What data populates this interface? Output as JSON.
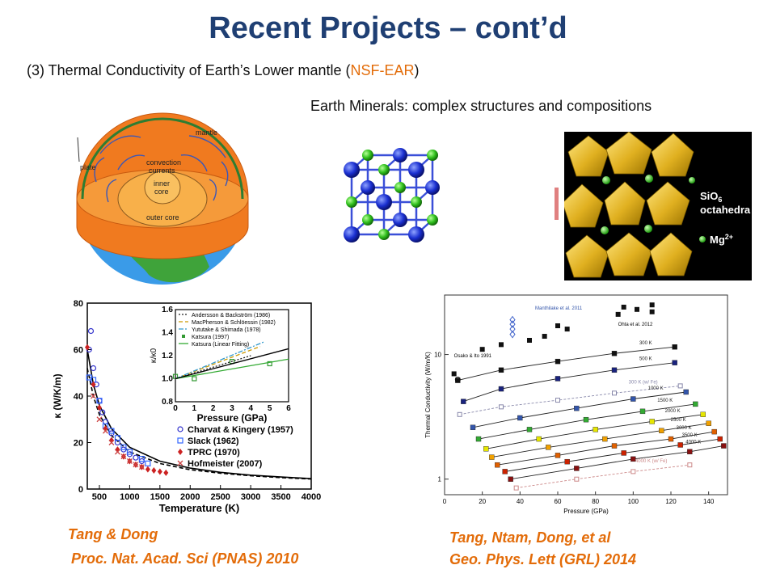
{
  "slide": {
    "title": "Recent Projects – cont’d",
    "subtitle_prefix": "(3) Thermal Conductivity of Earth’s Lower mantle (",
    "subtitle_funding": "NSF-EAR",
    "subtitle_suffix": ")",
    "minerals_caption": "Earth Minerals: complex structures and compositions"
  },
  "earth_diagram": {
    "labels": {
      "mantle": "mantle",
      "convection": "convection",
      "currents": "currents",
      "plate": "plate",
      "inner": "inner",
      "core": "core",
      "outer_core": "outer core"
    }
  },
  "perovskite": {
    "labels": {
      "sio6": "SiO",
      "sio6_sub": "6",
      "octahedra": "octahedra",
      "mg": "Mg",
      "mg_sup": "2+"
    }
  },
  "citations": {
    "left_line1": "Tang & Dong",
    "left_line2": "Proc. Nat. Acad. Sci (PNAS) 2010",
    "right_line1": "Tang, Ntam, Dong, et al",
    "right_line2": "Geo. Phys. Lett (GRL) 2014"
  },
  "chart_data": [
    {
      "type": "scatter",
      "xlabel": "Temperature (K)",
      "ylabel": "κ (W/K/m)",
      "xlim": [
        300,
        4000
      ],
      "ylim": [
        0,
        80
      ],
      "xticks": [
        "500",
        "1000",
        "1500",
        "2000",
        "2500",
        "3000",
        "3500",
        "4000"
      ],
      "yticks": [
        "0",
        "20",
        "40",
        "60",
        "80"
      ],
      "series": [
        {
          "name": "Charvat & Kingery (1957)",
          "color": "#3333cc",
          "marker": "circle",
          "x": [
            330,
            360,
            400,
            450,
            500,
            550,
            600,
            700,
            800,
            900,
            1000,
            1100,
            1200
          ],
          "y": [
            60,
            68,
            52,
            45,
            38,
            33,
            29,
            24,
            20,
            17,
            15,
            13.5,
            12
          ]
        },
        {
          "name": "Slack (1962)",
          "color": "#3366ff",
          "marker": "square",
          "x": [
            330,
            400,
            500,
            600,
            700,
            800,
            900,
            1000,
            1200,
            1300
          ],
          "y": [
            48,
            47,
            38,
            27,
            25,
            22,
            18,
            16,
            13,
            11
          ]
        },
        {
          "name": "TPRC (1970)",
          "color": "#cc2222",
          "marker": "diamond",
          "x": [
            300,
            400,
            500,
            600,
            700,
            800,
            900,
            1000,
            1100,
            1200,
            1300,
            1400,
            1500,
            1600
          ],
          "y": [
            61,
            45,
            35,
            26,
            21,
            17,
            14,
            12,
            10.5,
            9.5,
            8.5,
            8,
            7.5,
            7
          ]
        },
        {
          "name": "Hofmeister (2007)",
          "color": "#cc4444",
          "marker": "x",
          "x": [
            400,
            500,
            600,
            700,
            800,
            900,
            1000,
            1100,
            1200
          ],
          "y": [
            40,
            30,
            25,
            20,
            16,
            14,
            12,
            10.5,
            9.5
          ]
        }
      ],
      "curves": [
        {
          "style": "solid",
          "x": [
            300,
            400,
            500,
            700,
            1000,
            1500,
            2000,
            2500,
            3000,
            3500,
            4000
          ],
          "y": [
            60,
            45,
            36,
            26,
            18,
            12,
            9,
            7.2,
            6,
            5.2,
            4.5
          ]
        },
        {
          "style": "dashed",
          "x": [
            300,
            400,
            500,
            700,
            1000,
            1500,
            2000,
            2500,
            3000,
            3500,
            4000
          ],
          "y": [
            52,
            40,
            32,
            23,
            16,
            11,
            8.3,
            6.8,
            5.7,
            4.9,
            4.3
          ]
        }
      ],
      "inset": {
        "type": "line",
        "xlabel": "Pressure (GPa)",
        "ylabel": "κ/κ0",
        "xlim": [
          0,
          6
        ],
        "ylim": [
          0.8,
          1.6
        ],
        "xticks": [
          "0",
          "1",
          "2",
          "3",
          "4",
          "5",
          "6"
        ],
        "yticks": [
          "0.8",
          "1.0",
          "1.2",
          "1.4",
          "1.6"
        ],
        "series": [
          {
            "name": "Andersson & Backström (1986)",
            "color": "#222222",
            "style": "dotted",
            "x": [
              0,
              4
            ],
            "y": [
              1.0,
              1.2
            ]
          },
          {
            "name": "MacPherson & Schlöessin (1982)",
            "color": "#cc9900",
            "style": "dashed",
            "x": [
              0,
              4.5
            ],
            "y": [
              1.0,
              1.28
            ]
          },
          {
            "name": "Yututake & Shimada (1978)",
            "color": "#3399cc",
            "style": "dashdot",
            "x": [
              0,
              4.7
            ],
            "y": [
              1.0,
              1.32
            ]
          },
          {
            "name": "Katsura (1997)",
            "color": "#339933",
            "style": "points",
            "x": [
              0,
              1,
              3,
              5
            ],
            "y": [
              1.02,
              1.0,
              1.15,
              1.13
            ]
          },
          {
            "name": "Katsura (Linear Fitting)",
            "color": "#33aa33",
            "style": "solid",
            "x": [
              0,
              6
            ],
            "y": [
              1.0,
              1.17
            ]
          }
        ],
        "black_fit": {
          "x": [
            0,
            6
          ],
          "y": [
            1.0,
            1.26
          ]
        }
      }
    },
    {
      "type": "line",
      "xlabel": "Pressure (GPa)",
      "ylabel": "Thermal Conductivity (W/m/K)",
      "xlim": [
        0,
        150
      ],
      "xticks": [
        "0",
        "20",
        "40",
        "60",
        "80",
        "100",
        "120",
        "140"
      ],
      "yticks": [
        "1",
        "10"
      ],
      "annotations": [
        "Manthilake et al. 2011",
        "Ohta et al. 2012",
        "Osako & Ito 1991"
      ],
      "series": [
        {
          "name": "300 K",
          "color": "#111111",
          "x": [
            7,
            30,
            60,
            90,
            122
          ],
          "y": [
            6.2,
            7.5,
            8.8,
            10.2,
            11.5
          ]
        },
        {
          "name": "500 K",
          "color": "#1a237e",
          "x": [
            10,
            30,
            60,
            90,
            122
          ],
          "y": [
            4.2,
            5.3,
            6.4,
            7.5,
            8.6
          ]
        },
        {
          "name": "300 K (w/ Fe)",
          "color": "#8888aa",
          "x": [
            8,
            30,
            60,
            90,
            125
          ],
          "y": [
            3.3,
            3.8,
            4.3,
            4.9,
            5.6
          ]
        },
        {
          "name": "1000 K",
          "color": "#3355aa",
          "x": [
            15,
            40,
            70,
            100,
            128
          ],
          "y": [
            2.6,
            3.1,
            3.7,
            4.4,
            5.0
          ]
        },
        {
          "name": "1500 K",
          "color": "#33aa33",
          "x": [
            18,
            45,
            75,
            105,
            133
          ],
          "y": [
            2.1,
            2.5,
            3.0,
            3.5,
            4.0
          ]
        },
        {
          "name": "2000 K",
          "color": "#e6e600",
          "x": [
            22,
            50,
            80,
            110,
            137
          ],
          "y": [
            1.75,
            2.1,
            2.5,
            2.9,
            3.3
          ]
        },
        {
          "name": "2500 K",
          "color": "#f0a000",
          "x": [
            25,
            55,
            85,
            115,
            140
          ],
          "y": [
            1.5,
            1.8,
            2.1,
            2.45,
            2.8
          ]
        },
        {
          "name": "3000 K",
          "color": "#e06000",
          "x": [
            28,
            60,
            90,
            120,
            143
          ],
          "y": [
            1.3,
            1.55,
            1.85,
            2.1,
            2.4
          ]
        },
        {
          "name": "3500 K",
          "color": "#cc2200",
          "x": [
            32,
            65,
            95,
            125,
            146
          ],
          "y": [
            1.15,
            1.38,
            1.62,
            1.88,
            2.1
          ]
        },
        {
          "name": "4000 K",
          "color": "#881111",
          "x": [
            35,
            70,
            100,
            130,
            148
          ],
          "y": [
            1.0,
            1.22,
            1.45,
            1.66,
            1.85
          ]
        },
        {
          "name": "4000 K (w/ Fe)",
          "color": "#cc8888",
          "x": [
            38,
            70,
            100,
            130
          ],
          "y": [
            0.85,
            1.0,
            1.15,
            1.3
          ]
        }
      ]
    }
  ]
}
